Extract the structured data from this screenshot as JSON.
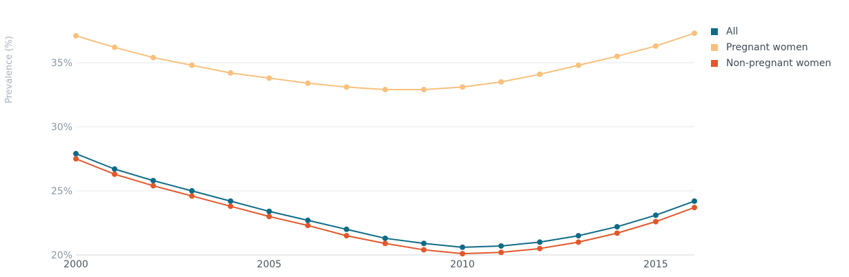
{
  "chart_data": {
    "type": "line",
    "title": "",
    "xlabel": "",
    "ylabel": "Prevalence (%)",
    "x": [
      2000,
      2001,
      2002,
      2003,
      2004,
      2005,
      2006,
      2007,
      2008,
      2009,
      2010,
      2011,
      2012,
      2013,
      2014,
      2015,
      2016
    ],
    "xlim": [
      2000,
      2016
    ],
    "ylim": [
      20,
      38
    ],
    "yticks": [
      20,
      25,
      30,
      35
    ],
    "ytick_labels": [
      "20%",
      "25%",
      "30%",
      "35%"
    ],
    "xticks": [
      2000,
      2005,
      2010,
      2015
    ],
    "xtick_labels": [
      "2000",
      "2005",
      "2010",
      "2015"
    ],
    "grid": true,
    "legend_position": "top-right",
    "series": [
      {
        "name": "All",
        "color": "#0e6b86",
        "values": [
          27.9,
          26.7,
          25.8,
          25.0,
          24.2,
          23.4,
          22.7,
          22.0,
          21.3,
          20.9,
          20.6,
          20.7,
          21.0,
          21.5,
          22.2,
          23.1,
          24.2
        ]
      },
      {
        "name": "Pregnant women",
        "color": "#f9c07b",
        "values": [
          37.1,
          36.2,
          35.4,
          34.8,
          34.2,
          33.8,
          33.4,
          33.1,
          32.9,
          32.9,
          33.1,
          33.5,
          34.1,
          34.8,
          35.5,
          36.3,
          37.3
        ]
      },
      {
        "name": "Non-pregnant women",
        "color": "#e2582a",
        "values": [
          27.5,
          26.3,
          25.4,
          24.6,
          23.8,
          23.0,
          22.3,
          21.5,
          20.9,
          20.4,
          20.1,
          20.2,
          20.5,
          21.0,
          21.7,
          22.6,
          23.7
        ]
      }
    ]
  }
}
